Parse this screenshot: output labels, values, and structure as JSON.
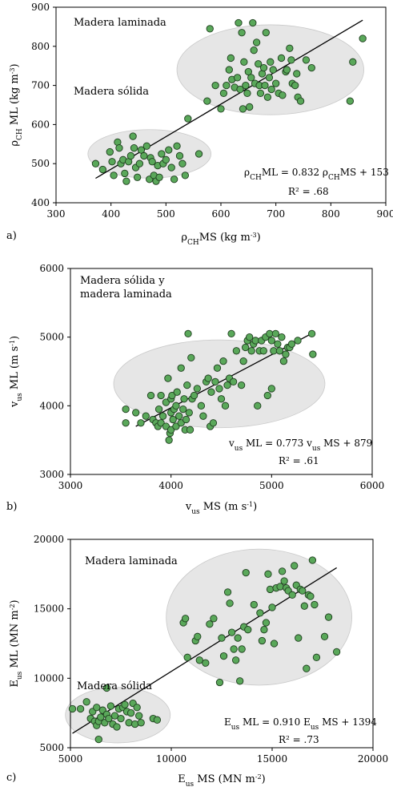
{
  "chart_data": [
    {
      "type": "scatter",
      "panel_label": "a)",
      "xlabel": {
        "main": "ρ",
        "sub": "CH",
        "rest": "MS  (kg m",
        "sup": "-3",
        "end": ")"
      },
      "ylabel": {
        "main": "ρ",
        "sub": "CH",
        "rest": " ML  (kg m",
        "sup": "-3",
        "end": ")"
      },
      "xlim": [
        300,
        900
      ],
      "ylim": [
        400,
        900
      ],
      "xticks": [
        300,
        400,
        500,
        600,
        700,
        800,
        900
      ],
      "yticks": [
        400,
        500,
        600,
        700,
        800,
        900
      ],
      "annotations": [
        "Madera laminada",
        "Madera sólida"
      ],
      "equation": {
        "a": "ρ",
        "sub1": "CH",
        "b": "ML = 0.832 ",
        "c": "ρ",
        "sub2": "CH",
        "d": "MS + 153"
      },
      "r2": "R² = .68",
      "marker_color": "#5aa85a",
      "ellipse_color": "#e6e6e6",
      "trendline": {
        "slope": 0.832,
        "intercept": 153,
        "x_range": [
          372,
          858
        ]
      },
      "ellipses": [
        {
          "cx": 470,
          "cy": 525,
          "rx": 112,
          "ry": 62,
          "angle": 0
        },
        {
          "cx": 690,
          "cy": 740,
          "rx": 170,
          "ry": 115,
          "angle": 0
        }
      ],
      "points": [
        [
          372,
          500
        ],
        [
          385,
          485
        ],
        [
          398,
          530
        ],
        [
          402,
          505
        ],
        [
          405,
          470
        ],
        [
          412,
          555
        ],
        [
          415,
          540
        ],
        [
          418,
          500
        ],
        [
          422,
          510
        ],
        [
          425,
          475
        ],
        [
          428,
          455
        ],
        [
          432,
          505
        ],
        [
          436,
          520
        ],
        [
          440,
          570
        ],
        [
          442,
          540
        ],
        [
          445,
          490
        ],
        [
          448,
          465
        ],
        [
          452,
          500
        ],
        [
          455,
          535
        ],
        [
          460,
          520
        ],
        [
          465,
          545
        ],
        [
          470,
          460
        ],
        [
          472,
          515
        ],
        [
          475,
          505
        ],
        [
          478,
          470
        ],
        [
          482,
          455
        ],
        [
          485,
          495
        ],
        [
          488,
          465
        ],
        [
          492,
          525
        ],
        [
          495,
          500
        ],
        [
          500,
          510
        ],
        [
          505,
          535
        ],
        [
          510,
          490
        ],
        [
          515,
          460
        ],
        [
          520,
          545
        ],
        [
          525,
          520
        ],
        [
          530,
          500
        ],
        [
          535,
          470
        ],
        [
          540,
          615
        ],
        [
          560,
          525
        ],
        [
          575,
          660
        ],
        [
          580,
          845
        ],
        [
          590,
          700
        ],
        [
          600,
          640
        ],
        [
          605,
          680
        ],
        [
          610,
          700
        ],
        [
          615,
          740
        ],
        [
          618,
          770
        ],
        [
          620,
          715
        ],
        [
          625,
          695
        ],
        [
          630,
          720
        ],
        [
          632,
          860
        ],
        [
          635,
          690
        ],
        [
          638,
          835
        ],
        [
          640,
          640
        ],
        [
          642,
          760
        ],
        [
          645,
          700
        ],
        [
          648,
          680
        ],
        [
          650,
          735
        ],
        [
          652,
          645
        ],
        [
          655,
          720
        ],
        [
          658,
          860
        ],
        [
          660,
          790
        ],
        [
          662,
          705
        ],
        [
          665,
          810
        ],
        [
          668,
          755
        ],
        [
          670,
          700
        ],
        [
          672,
          680
        ],
        [
          675,
          730
        ],
        [
          678,
          745
        ],
        [
          680,
          700
        ],
        [
          682,
          835
        ],
        [
          685,
          670
        ],
        [
          688,
          720
        ],
        [
          690,
          760
        ],
        [
          692,
          690
        ],
        [
          695,
          740
        ],
        [
          700,
          705
        ],
        [
          705,
          680
        ],
        [
          710,
          770
        ],
        [
          712,
          675
        ],
        [
          718,
          735
        ],
        [
          720,
          740
        ],
        [
          725,
          795
        ],
        [
          728,
          765
        ],
        [
          730,
          705
        ],
        [
          735,
          700
        ],
        [
          738,
          730
        ],
        [
          740,
          670
        ],
        [
          745,
          660
        ],
        [
          755,
          765
        ],
        [
          765,
          745
        ],
        [
          840,
          760
        ],
        [
          835,
          660
        ],
        [
          858,
          820
        ]
      ]
    },
    {
      "type": "scatter",
      "panel_label": "b)",
      "xlabel": {
        "main": "v",
        "sub": "us",
        "rest": " MS  (m s",
        "sup": "-1",
        "end": ")"
      },
      "ylabel": {
        "main": "v",
        "sub": "us",
        "rest": " ML  (m s",
        "sup": "-1",
        "end": ")"
      },
      "xlim": [
        3000,
        6000
      ],
      "ylim": [
        3000,
        6000
      ],
      "xticks": [
        3000,
        4000,
        5000,
        6000
      ],
      "yticks": [
        3000,
        4000,
        5000,
        6000
      ],
      "annotations": [
        "Madera sólida y",
        "madera laminada"
      ],
      "equation": {
        "a": "v",
        "sub1": "us",
        "b": " ML = 0.773 v",
        "sub2": "us",
        "d": " MS + 879"
      },
      "r2": "R² = .61",
      "marker_color": "#5aa85a",
      "ellipse_color": "#e6e6e6",
      "trendline": {
        "slope": 0.773,
        "intercept": 879,
        "x_range": [
          3650,
          5420
        ]
      },
      "ellipses": [
        {
          "cx": 4480,
          "cy": 4320,
          "rx": 1050,
          "ry": 640,
          "angle": 0
        }
      ],
      "points": [
        [
          3550,
          3750
        ],
        [
          3550,
          3950
        ],
        [
          3650,
          3900
        ],
        [
          3700,
          3750
        ],
        [
          3750,
          3850
        ],
        [
          3800,
          4150
        ],
        [
          3820,
          3800
        ],
        [
          3850,
          3750
        ],
        [
          3870,
          3700
        ],
        [
          3880,
          3950
        ],
        [
          3900,
          4150
        ],
        [
          3900,
          3750
        ],
        [
          3920,
          3850
        ],
        [
          3950,
          4050
        ],
        [
          3950,
          3700
        ],
        [
          3970,
          4400
        ],
        [
          3980,
          3500
        ],
        [
          3990,
          3600
        ],
        [
          4000,
          4100
        ],
        [
          4000,
          3900
        ],
        [
          4000,
          3650
        ],
        [
          4010,
          4150
        ],
        [
          4020,
          3800
        ],
        [
          4030,
          3950
        ],
        [
          4050,
          4000
        ],
        [
          4050,
          3700
        ],
        [
          4060,
          4200
        ],
        [
          4080,
          3850
        ],
        [
          4100,
          4550
        ],
        [
          4100,
          3750
        ],
        [
          4120,
          3950
        ],
        [
          4130,
          4100
        ],
        [
          4140,
          3650
        ],
        [
          4150,
          3800
        ],
        [
          4160,
          4300
        ],
        [
          4170,
          5050
        ],
        [
          4180,
          3900
        ],
        [
          4190,
          3650
        ],
        [
          4200,
          4700
        ],
        [
          4210,
          4100
        ],
        [
          4230,
          4150
        ],
        [
          4260,
          4250
        ],
        [
          4300,
          4000
        ],
        [
          4320,
          3850
        ],
        [
          4350,
          4350
        ],
        [
          4370,
          4400
        ],
        [
          4390,
          3700
        ],
        [
          4400,
          4200
        ],
        [
          4420,
          3750
        ],
        [
          4440,
          4350
        ],
        [
          4460,
          4550
        ],
        [
          4480,
          4250
        ],
        [
          4500,
          4100
        ],
        [
          4520,
          4650
        ],
        [
          4540,
          4000
        ],
        [
          4560,
          4300
        ],
        [
          4580,
          4400
        ],
        [
          4600,
          5050
        ],
        [
          4620,
          4350
        ],
        [
          4650,
          4800
        ],
        [
          4700,
          4300
        ],
        [
          4720,
          4650
        ],
        [
          4740,
          4850
        ],
        [
          4760,
          4950
        ],
        [
          4780,
          5000
        ],
        [
          4800,
          4800
        ],
        [
          4820,
          4900
        ],
        [
          4840,
          4950
        ],
        [
          4860,
          4000
        ],
        [
          4880,
          4800
        ],
        [
          4900,
          4950
        ],
        [
          4920,
          4800
        ],
        [
          4940,
          5000
        ],
        [
          4960,
          4150
        ],
        [
          4980,
          5050
        ],
        [
          5000,
          4950
        ],
        [
          5000,
          4250
        ],
        [
          5020,
          4800
        ],
        [
          5040,
          5050
        ],
        [
          5060,
          4900
        ],
        [
          5080,
          4800
        ],
        [
          5100,
          5000
        ],
        [
          5120,
          4650
        ],
        [
          5140,
          4750
        ],
        [
          5160,
          4850
        ],
        [
          5180,
          4850
        ],
        [
          5200,
          4900
        ],
        [
          5260,
          4950
        ],
        [
          5400,
          5050
        ],
        [
          5410,
          4750
        ]
      ]
    },
    {
      "type": "scatter",
      "panel_label": "c)",
      "xlabel": {
        "main": "E",
        "sub": "us",
        "rest": " MS  (MN m",
        "sup": "-2",
        "end": ")"
      },
      "ylabel": {
        "main": "E",
        "sub": "us",
        "rest": " ML  (MN m",
        "sup": "-2",
        "end": ")"
      },
      "xlim": [
        5000,
        20000
      ],
      "ylim": [
        5000,
        20000
      ],
      "xticks": [
        5000,
        10000,
        15000,
        20000
      ],
      "yticks": [
        5000,
        10000,
        15000,
        20000
      ],
      "annotations": [
        "Madera laminada",
        "Madera sólida"
      ],
      "equation": {
        "a": "E",
        "sub1": "us",
        "b": " ML = 0.910 E",
        "sub2": "us",
        "d": " MS + 1394"
      },
      "r2": "R² = .73",
      "marker_color": "#5aa85a",
      "ellipse_color": "#e6e6e6",
      "trendline": {
        "slope": 0.91,
        "intercept": 1394,
        "x_range": [
          5100,
          18200
        ]
      },
      "ellipses": [
        {
          "cx": 7350,
          "cy": 7350,
          "rx": 2600,
          "ry": 2000,
          "angle": 0
        },
        {
          "cx": 14350,
          "cy": 14400,
          "rx": 4600,
          "ry": 4900,
          "angle": 0
        }
      ],
      "points": [
        [
          5100,
          7800
        ],
        [
          5500,
          7800
        ],
        [
          5800,
          8300
        ],
        [
          6000,
          7100
        ],
        [
          6100,
          7600
        ],
        [
          6200,
          6900
        ],
        [
          6300,
          6600
        ],
        [
          6300,
          7900
        ],
        [
          6400,
          5600
        ],
        [
          6400,
          6900
        ],
        [
          6500,
          7200
        ],
        [
          6600,
          7700
        ],
        [
          6700,
          6800
        ],
        [
          6800,
          9300
        ],
        [
          6800,
          7400
        ],
        [
          6900,
          7100
        ],
        [
          7000,
          8000
        ],
        [
          7100,
          6700
        ],
        [
          7200,
          7300
        ],
        [
          7300,
          6500
        ],
        [
          7400,
          7800
        ],
        [
          7500,
          7100
        ],
        [
          7600,
          7900
        ],
        [
          7700,
          8100
        ],
        [
          7800,
          7600
        ],
        [
          7900,
          6800
        ],
        [
          8000,
          7500
        ],
        [
          8100,
          8200
        ],
        [
          8200,
          6700
        ],
        [
          8300,
          7900
        ],
        [
          8400,
          7300
        ],
        [
          8500,
          6800
        ],
        [
          9100,
          7100
        ],
        [
          9300,
          7000
        ],
        [
          10600,
          14000
        ],
        [
          10700,
          14300
        ],
        [
          10800,
          11500
        ],
        [
          11200,
          12700
        ],
        [
          11300,
          13000
        ],
        [
          11400,
          11300
        ],
        [
          11700,
          11100
        ],
        [
          11900,
          13900
        ],
        [
          12100,
          14300
        ],
        [
          12400,
          9700
        ],
        [
          12500,
          12900
        ],
        [
          12600,
          11600
        ],
        [
          12800,
          16200
        ],
        [
          12900,
          15400
        ],
        [
          13000,
          13300
        ],
        [
          13100,
          12100
        ],
        [
          13200,
          11300
        ],
        [
          13300,
          12900
        ],
        [
          13400,
          9800
        ],
        [
          13500,
          12100
        ],
        [
          13600,
          13700
        ],
        [
          13700,
          17600
        ],
        [
          13800,
          13500
        ],
        [
          14100,
          15300
        ],
        [
          14400,
          14700
        ],
        [
          14500,
          12700
        ],
        [
          14600,
          13500
        ],
        [
          14700,
          14000
        ],
        [
          14800,
          17500
        ],
        [
          14900,
          16400
        ],
        [
          15000,
          15100
        ],
        [
          15100,
          12500
        ],
        [
          15200,
          16500
        ],
        [
          15400,
          16600
        ],
        [
          15500,
          17700
        ],
        [
          15600,
          17000
        ],
        [
          15700,
          16500
        ],
        [
          15800,
          16300
        ],
        [
          16000,
          16000
        ],
        [
          16100,
          18100
        ],
        [
          16200,
          16700
        ],
        [
          16300,
          12900
        ],
        [
          16400,
          16400
        ],
        [
          16500,
          16300
        ],
        [
          16600,
          15200
        ],
        [
          16700,
          10700
        ],
        [
          16800,
          16000
        ],
        [
          16900,
          15900
        ],
        [
          17000,
          18500
        ],
        [
          17100,
          15300
        ],
        [
          17200,
          11500
        ],
        [
          17600,
          13000
        ],
        [
          17800,
          14400
        ],
        [
          18200,
          11900
        ]
      ]
    }
  ]
}
